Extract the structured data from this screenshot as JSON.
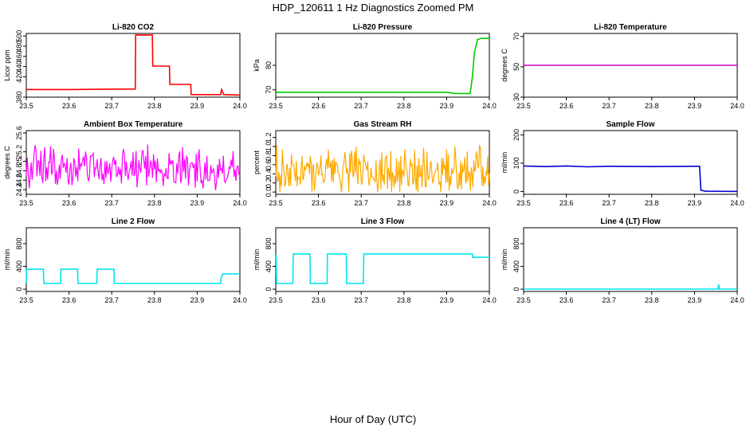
{
  "figure": {
    "title": "HDP_120611  1 Hz Diagnostics Zoomed PM",
    "xlabel": "Hour of Day (UTC)"
  },
  "chart_data": [
    {
      "type": "line",
      "title": "Li-820 CO2",
      "ylabel": "Licor ppm",
      "color": "#ff0000",
      "xlim": [
        23.5,
        24.0
      ],
      "ylim": [
        380,
        505
      ],
      "x_ticks": [
        "23.5",
        "23.6",
        "23.7",
        "23.8",
        "23.9",
        "24.0"
      ],
      "y_ticks": [
        380,
        420,
        440,
        460,
        480,
        500
      ],
      "x": [
        23.5,
        23.6,
        23.755,
        23.756,
        23.795,
        23.796,
        23.835,
        23.836,
        23.885,
        23.886,
        23.955,
        23.957,
        23.962,
        23.963,
        24.0
      ],
      "y": [
        395,
        395,
        396,
        502,
        502,
        441,
        441,
        405,
        405,
        385,
        385,
        395,
        385,
        385,
        384
      ]
    },
    {
      "type": "line",
      "title": "Li-820 Pressure",
      "ylabel": "kPa",
      "color": "#00cc00",
      "xlim": [
        23.5,
        24.0
      ],
      "ylim": [
        67,
        93
      ],
      "x_ticks": [
        "23.5",
        "23.6",
        "23.7",
        "23.8",
        "23.9",
        "24.0"
      ],
      "y_ticks": [
        70,
        80
      ],
      "x": [
        23.5,
        23.7,
        23.9,
        23.92,
        23.955,
        23.96,
        23.965,
        23.972,
        23.98,
        24.0
      ],
      "y": [
        69,
        69,
        69,
        68.5,
        68.5,
        75,
        85,
        90.5,
        91,
        91
      ]
    },
    {
      "type": "line",
      "title": "Li-820 Temperature",
      "ylabel": "degrees C",
      "color": "#cc00cc",
      "xlim": [
        23.5,
        24.0
      ],
      "ylim": [
        30,
        72
      ],
      "x_ticks": [
        "23.5",
        "23.6",
        "23.7",
        "23.8",
        "23.9",
        "24.0"
      ],
      "y_ticks": [
        30,
        50,
        70
      ],
      "x": [
        23.5,
        24.0
      ],
      "y": [
        51,
        51
      ]
    },
    {
      "type": "line",
      "title": "Ambient Box Temperature",
      "ylabel": "degrees C",
      "color": "#ff00ff",
      "xlim": [
        23.5,
        24.0
      ],
      "ylim": [
        24.3,
        25.65
      ],
      "x_ticks": [
        "23.5",
        "23.6",
        "23.7",
        "23.8",
        "23.9",
        "24.0"
      ],
      "y_ticks": [
        24.4,
        24.6,
        24.8,
        25.0,
        25.2,
        25.6
      ],
      "noise": {
        "center": 24.85,
        "amp": 0.65,
        "min": 24.35,
        "max": 25.55,
        "n": 220
      }
    },
    {
      "type": "line",
      "title": "Gas Stream RH",
      "ylabel": "percent",
      "color": "#ffaa00",
      "xlim": [
        23.5,
        24.0
      ],
      "ylim": [
        -0.05,
        1.35
      ],
      "x_ticks": [
        "23.5",
        "23.6",
        "23.7",
        "23.8",
        "23.9",
        "24.0"
      ],
      "y_ticks": [
        0.0,
        0.2,
        0.4,
        0.6,
        0.8,
        1.0,
        1.2
      ],
      "noise": {
        "center": 0.45,
        "amp": 0.8,
        "min": 0.0,
        "max": 1.25,
        "n": 260
      }
    },
    {
      "type": "line",
      "title": "Sample Flow",
      "ylabel": "ml/min",
      "color": "#0000cc",
      "xlim": [
        23.5,
        24.0
      ],
      "ylim": [
        -10,
        215
      ],
      "x_ticks": [
        "23.5",
        "23.6",
        "23.7",
        "23.8",
        "23.9",
        "24.0"
      ],
      "y_ticks": [
        0,
        100,
        200
      ],
      "x": [
        23.5,
        23.55,
        23.6,
        23.65,
        23.7,
        23.8,
        23.9,
        23.912,
        23.915,
        23.925,
        24.0
      ],
      "y": [
        90,
        88,
        90,
        87,
        89,
        88,
        89,
        89,
        5,
        1,
        0
      ]
    },
    {
      "type": "line",
      "title": "Line 2 Flow",
      "ylabel": "ml/min",
      "color": "#00e5ee",
      "xlim": [
        23.5,
        24.0
      ],
      "ylim": [
        -40,
        1080
      ],
      "x_ticks": [
        "23.5",
        "23.6",
        "23.7",
        "23.8",
        "23.9",
        "24.0"
      ],
      "y_ticks": [
        0,
        400,
        800
      ],
      "x": [
        23.5,
        23.501,
        23.54,
        23.541,
        23.58,
        23.581,
        23.62,
        23.621,
        23.665,
        23.666,
        23.705,
        23.706,
        23.955,
        23.956,
        23.96,
        24.0
      ],
      "y": [
        100,
        350,
        350,
        100,
        100,
        350,
        350,
        100,
        100,
        350,
        350,
        100,
        100,
        200,
        270,
        270
      ]
    },
    {
      "type": "line",
      "title": "Line 3 Flow",
      "ylabel": "ml/min",
      "color": "#00e5ee",
      "xlim": [
        23.5,
        24.0
      ],
      "ylim": [
        -40,
        1080
      ],
      "x_ticks": [
        "23.5",
        "23.6",
        "23.7",
        "23.8",
        "23.9",
        "24.0"
      ],
      "y_ticks": [
        0,
        400,
        800
      ],
      "x": [
        23.5,
        23.501,
        23.502,
        23.54,
        23.541,
        23.58,
        23.581,
        23.62,
        23.621,
        23.665,
        23.666,
        23.705,
        23.706,
        23.96,
        23.961,
        24.0
      ],
      "y": [
        600,
        600,
        100,
        100,
        620,
        620,
        100,
        100,
        620,
        620,
        100,
        100,
        620,
        620,
        560,
        560
      ]
    },
    {
      "type": "line",
      "title": "Line 4 (LT) Flow",
      "ylabel": "ml/min",
      "color": "#00e5ee",
      "xlim": [
        23.5,
        24.0
      ],
      "ylim": [
        -40,
        1080
      ],
      "x_ticks": [
        "23.5",
        "23.6",
        "23.7",
        "23.8",
        "23.9",
        "24.0"
      ],
      "y_ticks": [
        0,
        400,
        800
      ],
      "x": [
        23.5,
        23.955,
        23.956,
        23.957,
        23.958,
        24.0
      ],
      "y": [
        2,
        2,
        60,
        80,
        2,
        2
      ]
    }
  ]
}
